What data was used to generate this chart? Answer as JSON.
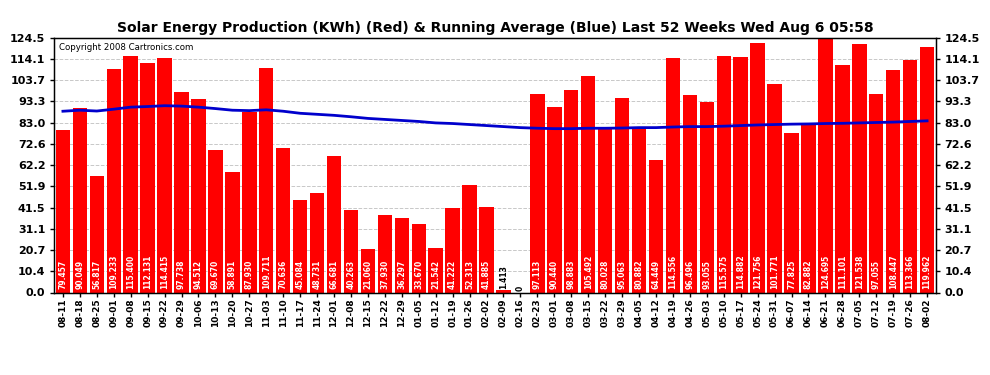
{
  "title": "Solar Energy Production (KWh) (Red) & Running Average (Blue) Last 52 Weeks Wed Aug 6 05:58",
  "copyright": "Copyright 2008 Cartronics.com",
  "bar_color": "#ff0000",
  "avg_color": "#0000cc",
  "background_color": "#ffffff",
  "grid_color": "#c8c8c8",
  "yticks": [
    0.0,
    10.4,
    20.7,
    31.1,
    41.5,
    51.9,
    62.2,
    72.6,
    83.0,
    93.3,
    103.7,
    114.1,
    124.5
  ],
  "categories": [
    "08-11",
    "08-18",
    "08-25",
    "09-01",
    "09-08",
    "09-15",
    "09-22",
    "09-29",
    "10-06",
    "10-13",
    "10-20",
    "10-27",
    "11-03",
    "11-10",
    "11-17",
    "11-24",
    "12-01",
    "12-08",
    "12-15",
    "12-22",
    "12-29",
    "01-05",
    "01-12",
    "01-19",
    "01-26",
    "02-02",
    "02-09",
    "02-16",
    "02-23",
    "03-01",
    "03-08",
    "03-15",
    "03-22",
    "03-29",
    "04-05",
    "04-12",
    "04-19",
    "04-26",
    "05-03",
    "05-10",
    "05-17",
    "05-24",
    "05-31",
    "06-07",
    "06-14",
    "06-21",
    "06-28",
    "07-05",
    "07-12",
    "07-19",
    "07-26",
    "08-02"
  ],
  "values": [
    79.457,
    90.049,
    56.817,
    109.233,
    115.4,
    112.131,
    114.415,
    97.738,
    94.512,
    69.67,
    58.891,
    87.93,
    109.711,
    70.636,
    45.084,
    48.731,
    66.681,
    40.263,
    21.06,
    37.93,
    36.297,
    33.67,
    21.542,
    41.222,
    52.313,
    41.885,
    1.413,
    0.0,
    97.113,
    90.44,
    98.883,
    105.492,
    80.028,
    95.063,
    80.882,
    64.449,
    114.556,
    96.496,
    93.055,
    115.575,
    114.882,
    121.756,
    101.771,
    77.825,
    82.882,
    124.695,
    111.101,
    121.538,
    97.055,
    108.447,
    113.366,
    119.962
  ],
  "running_avg": [
    88.5,
    89.0,
    88.6,
    89.5,
    90.5,
    90.8,
    91.2,
    91.0,
    90.5,
    89.8,
    89.0,
    88.8,
    89.2,
    88.5,
    87.5,
    87.0,
    86.5,
    85.8,
    85.0,
    84.5,
    84.0,
    83.5,
    82.8,
    82.5,
    82.0,
    81.5,
    81.0,
    80.5,
    80.2,
    80.0,
    80.0,
    80.2,
    80.2,
    80.3,
    80.5,
    80.5,
    80.8,
    81.0,
    81.0,
    81.2,
    81.5,
    81.8,
    82.0,
    82.2,
    82.3,
    82.5,
    82.6,
    82.8,
    83.0,
    83.2,
    83.5,
    83.8
  ],
  "ylim_max": 124.5,
  "title_fontsize": 10,
  "tick_fontsize": 8,
  "xlabel_fontsize": 6.5,
  "value_label_fontsize": 5.5,
  "bar_width": 0.85
}
